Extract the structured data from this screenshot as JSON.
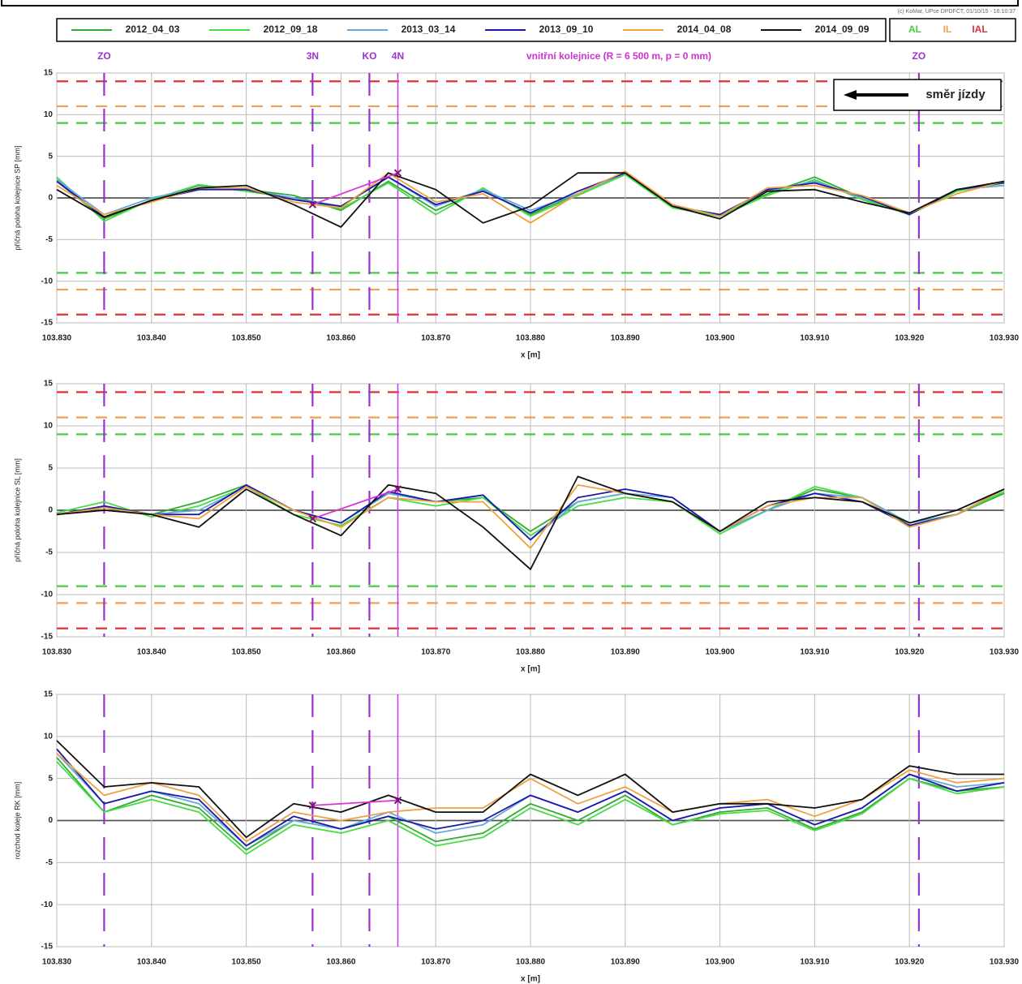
{
  "copyright": "(c) KoMar, UPce DPDFČT, 01/10/15 - 16:10:37",
  "chart_data": [
    {
      "type": "line",
      "annotation": "vnitřní kolejnice (R = 6 500 m, p = 0 mm)",
      "direction_label": "směr jízdy",
      "ylabel": "příčná poloha kolejnice SP [mm]",
      "xlabel": "x [m]",
      "xlim": [
        103.83,
        103.93
      ],
      "ylim": [
        -15,
        15
      ],
      "xticks": [
        {
          "value": 103.83,
          "label": "103.830"
        },
        {
          "value": 103.84,
          "label": "103.840"
        },
        {
          "value": 103.85,
          "label": "103.850"
        },
        {
          "value": 103.86,
          "label": "103.860"
        },
        {
          "value": 103.87,
          "label": "103.870"
        },
        {
          "value": 103.88,
          "label": "103.880"
        },
        {
          "value": 103.89,
          "label": "103.890"
        },
        {
          "value": 103.9,
          "label": "103.900"
        },
        {
          "value": 103.91,
          "label": "103.910"
        },
        {
          "value": 103.92,
          "label": "103.920"
        },
        {
          "value": 103.93,
          "label": "103.930"
        }
      ],
      "yticks": [
        -15,
        -10,
        -5,
        0,
        5,
        10,
        15
      ],
      "grid": true,
      "limits": [
        {
          "name": "AL",
          "values": [
            9,
            -9
          ],
          "color": "#44cc44"
        },
        {
          "name": "IL",
          "values": [
            11,
            -11
          ],
          "color": "#f0a050"
        },
        {
          "name": "IAL",
          "values": [
            14,
            -14
          ],
          "color": "#dd3333"
        }
      ],
      "vlines": [
        {
          "value": 103.835,
          "label": "ZO",
          "style": "dashed"
        },
        {
          "value": 103.857,
          "label": "3N",
          "style": "dashed"
        },
        {
          "value": 103.863,
          "label": "KO",
          "style": "dashed"
        },
        {
          "value": 103.866,
          "label": "4N",
          "style": "solid"
        },
        {
          "value": 103.921,
          "label": "ZO",
          "style": "dashed"
        }
      ],
      "trend": {
        "x": [
          103.857,
          103.866
        ],
        "values": [
          -0.8,
          3
        ],
        "color": "#dd33dd"
      },
      "x": [
        103.83,
        103.835,
        103.84,
        103.845,
        103.85,
        103.855,
        103.86,
        103.865,
        103.87,
        103.875,
        103.88,
        103.885,
        103.89,
        103.895,
        103.9,
        103.905,
        103.91,
        103.915,
        103.92,
        103.925,
        103.93
      ],
      "series": [
        {
          "name": "2012_04_03",
          "color": "#33aa33",
          "values": [
            2,
            -2.5,
            -0.3,
            1.5,
            1,
            0.3,
            -1.5,
            2,
            -1.5,
            1,
            -2,
            0.5,
            3,
            -1,
            -2,
            0.5,
            2.5,
            0,
            -2,
            1,
            1.5
          ]
        },
        {
          "name": "2012_09_18",
          "color": "#44dd44",
          "values": [
            2.5,
            -2.8,
            -0.2,
            1.6,
            0.8,
            0,
            -1.3,
            1.8,
            -2,
            1.2,
            -2.2,
            0.3,
            2.8,
            -1.2,
            -2.2,
            0.3,
            2.2,
            -0.2,
            -2,
            0.8,
            1.8
          ]
        },
        {
          "name": "2013_03_14",
          "color": "#66aadd",
          "values": [
            2.2,
            -2,
            0,
            1.2,
            1,
            0,
            -1,
            2.5,
            -1,
            1,
            -1.5,
            0.5,
            3,
            -1,
            -2,
            0.8,
            2,
            0,
            -1.8,
            1,
            1.5
          ]
        },
        {
          "name": "2013_09_10",
          "color": "#1a1aaa",
          "values": [
            2,
            -2.3,
            -0.3,
            1,
            1,
            -0.2,
            -1,
            2.5,
            -0.8,
            0.8,
            -1.8,
            0.8,
            3,
            -1,
            -2,
            1,
            1.8,
            0.2,
            -2,
            1,
            1.8
          ]
        },
        {
          "name": "2014_04_08",
          "color": "#f0a040",
          "values": [
            1.5,
            -2,
            -0.5,
            1.2,
            1.2,
            -0.5,
            -1.2,
            3,
            -0.5,
            0.5,
            -3,
            0.5,
            3.2,
            -0.8,
            -2.2,
            1.2,
            1.5,
            0.3,
            -1.8,
            0.5,
            2
          ]
        },
        {
          "name": "2014_09_09",
          "color": "#111111",
          "values": [
            1,
            -2.3,
            -0.3,
            1.2,
            1.5,
            -0.8,
            -3.5,
            3,
            1,
            -3,
            -1,
            3,
            3,
            -1,
            -2.5,
            0.8,
            1,
            -0.5,
            -1.8,
            1,
            2
          ]
        }
      ]
    },
    {
      "type": "line",
      "ylabel": "příčná poloha kolejnice SL [mm]",
      "xlabel": "x [m]",
      "xlim": [
        103.83,
        103.93
      ],
      "ylim": [
        -15,
        15
      ],
      "xticks": [
        {
          "value": 103.83,
          "label": "103.830"
        },
        {
          "value": 103.84,
          "label": "103.840"
        },
        {
          "value": 103.85,
          "label": "103.850"
        },
        {
          "value": 103.86,
          "label": "103.860"
        },
        {
          "value": 103.87,
          "label": "103.870"
        },
        {
          "value": 103.88,
          "label": "103.880"
        },
        {
          "value": 103.89,
          "label": "103.890"
        },
        {
          "value": 103.9,
          "label": "103.900"
        },
        {
          "value": 103.91,
          "label": "103.910"
        },
        {
          "value": 103.92,
          "label": "103.920"
        },
        {
          "value": 103.93,
          "label": "103.930"
        }
      ],
      "yticks": [
        -15,
        -10,
        -5,
        0,
        5,
        10,
        15
      ],
      "grid": true,
      "limits": [
        {
          "values": [
            9,
            -9
          ],
          "color": "#44cc44"
        },
        {
          "values": [
            11,
            -11
          ],
          "color": "#f0a050"
        },
        {
          "values": [
            14,
            -14
          ],
          "color": "#dd3333"
        }
      ],
      "vlines": [
        {
          "value": 103.835,
          "style": "dashed"
        },
        {
          "value": 103.857,
          "style": "dashed"
        },
        {
          "value": 103.863,
          "style": "dashed"
        },
        {
          "value": 103.866,
          "style": "solid"
        },
        {
          "value": 103.921,
          "style": "dashed"
        }
      ],
      "trend": {
        "x": [
          103.857,
          103.866
        ],
        "values": [
          -1,
          2.5
        ],
        "color": "#dd33dd"
      },
      "x": [
        103.83,
        103.835,
        103.84,
        103.845,
        103.85,
        103.855,
        103.86,
        103.865,
        103.87,
        103.875,
        103.88,
        103.885,
        103.89,
        103.895,
        103.9,
        103.905,
        103.91,
        103.915,
        103.92,
        103.925,
        103.93
      ],
      "series": [
        {
          "values": [
            -0.5,
            0.5,
            -0.5,
            1,
            3,
            0,
            -1.5,
            2,
            1,
            1.5,
            -2.5,
            1,
            2,
            1,
            -2.5,
            0,
            2.5,
            1.5,
            -1.5,
            -0.5,
            2
          ]
        },
        {
          "values": [
            -0.3,
            1,
            -0.8,
            0.5,
            2.8,
            -0.5,
            -1.8,
            1.5,
            0.5,
            1.5,
            -3,
            0.5,
            1.5,
            1,
            -2.8,
            0,
            2.8,
            1.5,
            -1.8,
            -0.5,
            2.2
          ]
        },
        {
          "values": [
            -0.5,
            0.5,
            -0.5,
            0,
            2.8,
            0,
            -1.5,
            2,
            1,
            1.8,
            -3.5,
            1,
            2,
            1.5,
            -2.5,
            0,
            2,
            1.5,
            -1.5,
            -0.5,
            2.5
          ]
        },
        {
          "values": [
            -0.5,
            0.5,
            -0.5,
            -0.5,
            3,
            0,
            -1.5,
            2.2,
            1,
            1.8,
            -3.5,
            1.5,
            2.5,
            1.5,
            -2.5,
            0.5,
            2,
            1,
            -1.8,
            -0.5,
            2.5
          ]
        },
        {
          "values": [
            -0.5,
            0.3,
            -0.5,
            -1,
            2.8,
            0,
            -2,
            1.5,
            1,
            1,
            -4.5,
            3,
            2,
            1,
            -2.5,
            0.5,
            1.5,
            1.5,
            -2,
            -0.5,
            2.5
          ]
        },
        {
          "values": [
            -0.5,
            0,
            -0.5,
            -2,
            2.5,
            -0.5,
            -3,
            3,
            2,
            -2,
            -7,
            4,
            2,
            1,
            -2.5,
            1,
            1.5,
            1,
            -1.5,
            0,
            2.5
          ]
        }
      ]
    },
    {
      "type": "line",
      "ylabel": "rozchod koleje RK [mm]",
      "xlabel": "x [m]",
      "xlim": [
        103.83,
        103.93
      ],
      "ylim": [
        -15,
        15
      ],
      "xticks": [
        {
          "value": 103.83,
          "label": "103.830"
        },
        {
          "value": 103.84,
          "label": "103.840"
        },
        {
          "value": 103.85,
          "label": "103.850"
        },
        {
          "value": 103.86,
          "label": "103.860"
        },
        {
          "value": 103.87,
          "label": "103.870"
        },
        {
          "value": 103.88,
          "label": "103.880"
        },
        {
          "value": 103.89,
          "label": "103.890"
        },
        {
          "value": 103.9,
          "label": "103.900"
        },
        {
          "value": 103.91,
          "label": "103.910"
        },
        {
          "value": 103.92,
          "label": "103.920"
        },
        {
          "value": 103.93,
          "label": "103.930"
        }
      ],
      "yticks": [
        -15,
        -10,
        -5,
        0,
        5,
        10,
        15
      ],
      "grid": true,
      "vlines": [
        {
          "value": 103.835,
          "style": "dashed"
        },
        {
          "value": 103.857,
          "style": "dashed"
        },
        {
          "value": 103.863,
          "style": "dashed"
        },
        {
          "value": 103.866,
          "style": "solid"
        },
        {
          "value": 103.921,
          "style": "dashed"
        }
      ],
      "trend": {
        "x": [
          103.857,
          103.866
        ],
        "values": [
          1.8,
          2.4
        ],
        "color": "#dd33dd"
      },
      "x": [
        103.83,
        103.835,
        103.84,
        103.845,
        103.85,
        103.855,
        103.86,
        103.865,
        103.87,
        103.875,
        103.88,
        103.885,
        103.89,
        103.895,
        103.9,
        103.905,
        103.91,
        103.915,
        103.92,
        103.925,
        103.93
      ],
      "series": [
        {
          "values": [
            7.5,
            1,
            3,
            1.5,
            -3.5,
            0,
            -1,
            0.5,
            -2.5,
            -1.5,
            2,
            0,
            3,
            -0.5,
            1,
            1.5,
            -1,
            1,
            5,
            3.5,
            4
          ]
        },
        {
          "values": [
            7,
            1,
            2.5,
            1,
            -4,
            -0.5,
            -1.5,
            0,
            -3,
            -2,
            1.5,
            -0.5,
            2.5,
            -0.5,
            0.8,
            1.2,
            -1.2,
            0.8,
            5,
            3.2,
            4
          ]
        },
        {
          "values": [
            8,
            2,
            3.5,
            2,
            -3,
            0,
            -1,
            1,
            -1.5,
            -0.5,
            3,
            1,
            3.5,
            0,
            1.5,
            2,
            -0.5,
            1.5,
            5.5,
            4,
            4.5
          ]
        },
        {
          "values": [
            8.5,
            2,
            3.5,
            2.5,
            -3,
            0.5,
            -1,
            0.5,
            -1,
            0,
            3,
            1,
            3.5,
            0,
            1.5,
            2,
            -0.5,
            1.5,
            5.5,
            3.5,
            4.5
          ]
        },
        {
          "values": [
            8,
            3,
            4.5,
            3,
            -2.5,
            1,
            0,
            1,
            1.5,
            1.5,
            5,
            2,
            4,
            1,
            2,
            2.5,
            0.5,
            2.5,
            6,
            4.5,
            5
          ]
        },
        {
          "values": [
            9.5,
            4,
            4.5,
            4,
            -2,
            2,
            1,
            3,
            1,
            1,
            5.5,
            3,
            5.5,
            1,
            2,
            2,
            1.5,
            2.5,
            6.5,
            5.5,
            5.5
          ]
        }
      ]
    }
  ]
}
